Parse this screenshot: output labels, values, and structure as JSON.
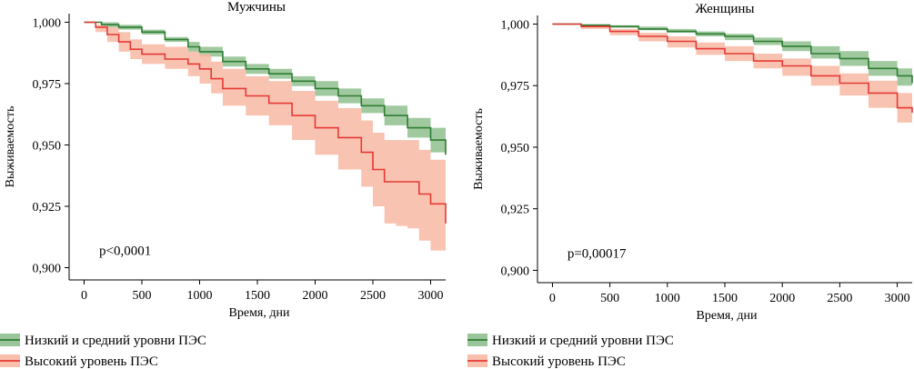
{
  "chart_data": [
    {
      "type": "line",
      "title": "Мужчины",
      "xlabel": "Время, дни",
      "ylabel": "Выживаемость",
      "xlim": [
        -130,
        3130
      ],
      "ylim": [
        0.895,
        1.0035
      ],
      "xticks": [
        0,
        500,
        1000,
        1500,
        2000,
        2500,
        3000
      ],
      "yticks": [
        0.9,
        0.925,
        0.95,
        0.975,
        1.0
      ],
      "xtick_labels": [
        "0",
        "500",
        "1000",
        "1500",
        "2000",
        "2500",
        "3000"
      ],
      "ytick_labels": [
        "0,900",
        "0,925",
        "0,950",
        "0,975",
        "1,000"
      ],
      "annotation": "p<0,0001",
      "annotation_pos": [
        130,
        0.907
      ],
      "grid": false,
      "series": [
        {
          "name": "Низкий и средний уровни ПЭС",
          "color": "#2e7d32",
          "band_color": "#8fbf8f",
          "x": [
            0,
            150,
            300,
            500,
            700,
            900,
            1000,
            1200,
            1400,
            1600,
            1800,
            2000,
            2200,
            2400,
            2600,
            2800,
            3000,
            3130
          ],
          "y": [
            1.0,
            0.999,
            0.998,
            0.996,
            0.993,
            0.99,
            0.988,
            0.984,
            0.981,
            0.979,
            0.976,
            0.973,
            0.97,
            0.966,
            0.962,
            0.957,
            0.952,
            0.946
          ],
          "lower": [
            1.0,
            0.998,
            0.997,
            0.995,
            0.992,
            0.988,
            0.986,
            0.982,
            0.979,
            0.977,
            0.974,
            0.97,
            0.967,
            0.963,
            0.958,
            0.953,
            0.947,
            0.94
          ],
          "upper": [
            1.0,
            1.0,
            0.999,
            0.997,
            0.994,
            0.992,
            0.99,
            0.986,
            0.983,
            0.981,
            0.978,
            0.976,
            0.973,
            0.969,
            0.966,
            0.961,
            0.957,
            0.952
          ]
        },
        {
          "name": "Высокий уровень ПЭС",
          "color": "#e53935",
          "band_color": "#f8b8a4",
          "x": [
            0,
            100,
            200,
            300,
            400,
            500,
            700,
            900,
            1000,
            1100,
            1200,
            1400,
            1600,
            1800,
            2000,
            2200,
            2400,
            2500,
            2600,
            2700,
            2800,
            2900,
            3000,
            3130
          ],
          "y": [
            1.0,
            0.998,
            0.995,
            0.992,
            0.989,
            0.987,
            0.985,
            0.983,
            0.981,
            0.977,
            0.973,
            0.97,
            0.967,
            0.962,
            0.957,
            0.953,
            0.947,
            0.94,
            0.935,
            0.935,
            0.935,
            0.93,
            0.926,
            0.918
          ],
          "lower": [
            1.0,
            0.996,
            0.992,
            0.988,
            0.985,
            0.983,
            0.981,
            0.978,
            0.975,
            0.971,
            0.966,
            0.962,
            0.958,
            0.952,
            0.946,
            0.94,
            0.933,
            0.925,
            0.918,
            0.917,
            0.916,
            0.911,
            0.907,
            0.903
          ],
          "upper": [
            1.0,
            0.999,
            0.998,
            0.996,
            0.993,
            0.991,
            0.99,
            0.988,
            0.987,
            0.984,
            0.981,
            0.978,
            0.976,
            0.972,
            0.968,
            0.965,
            0.96,
            0.955,
            0.952,
            0.952,
            0.952,
            0.948,
            0.944,
            0.935
          ]
        }
      ]
    },
    {
      "type": "line",
      "title": "Женщины",
      "xlabel": "Время, дни",
      "ylabel": "Выживаемость",
      "xlim": [
        -130,
        3130
      ],
      "ylim": [
        0.895,
        1.0035
      ],
      "xticks": [
        0,
        500,
        1000,
        1500,
        2000,
        2500,
        3000
      ],
      "yticks": [
        0.9,
        0.925,
        0.95,
        0.975,
        1.0
      ],
      "xtick_labels": [
        "0",
        "500",
        "1000",
        "1500",
        "2000",
        "2500",
        "3000"
      ],
      "ytick_labels": [
        "0,900",
        "0,925",
        "0,950",
        "0,975",
        "1,000"
      ],
      "annotation": "p=0,00017",
      "annotation_pos": [
        130,
        0.907
      ],
      "grid": false,
      "series": [
        {
          "name": "Низкий и средний уровни ПЭС",
          "color": "#2e7d32",
          "band_color": "#8fbf8f",
          "x": [
            0,
            250,
            500,
            750,
            1000,
            1250,
            1500,
            1750,
            2000,
            2250,
            2500,
            2750,
            3000,
            3130
          ],
          "y": [
            1.0,
            0.9995,
            0.999,
            0.998,
            0.997,
            0.996,
            0.995,
            0.993,
            0.991,
            0.988,
            0.986,
            0.982,
            0.979,
            0.976
          ],
          "lower": [
            1.0,
            0.999,
            0.9985,
            0.9975,
            0.9965,
            0.995,
            0.9935,
            0.9915,
            0.989,
            0.986,
            0.983,
            0.979,
            0.975,
            0.972
          ],
          "upper": [
            1.0,
            1.0,
            0.9995,
            0.999,
            0.998,
            0.997,
            0.996,
            0.9945,
            0.993,
            0.991,
            0.989,
            0.985,
            0.982,
            0.98
          ]
        },
        {
          "name": "Высокий уровень ПЭС",
          "color": "#e53935",
          "band_color": "#f8b8a4",
          "x": [
            0,
            250,
            500,
            750,
            1000,
            1250,
            1500,
            1750,
            2000,
            2250,
            2500,
            2750,
            3000,
            3130
          ],
          "y": [
            1.0,
            0.999,
            0.997,
            0.995,
            0.993,
            0.99,
            0.988,
            0.985,
            0.983,
            0.979,
            0.976,
            0.972,
            0.966,
            0.964
          ],
          "lower": [
            1.0,
            0.998,
            0.9955,
            0.993,
            0.9905,
            0.9875,
            0.985,
            0.982,
            0.979,
            0.975,
            0.971,
            0.966,
            0.96,
            0.958
          ],
          "upper": [
            1.0,
            0.9995,
            0.998,
            0.9965,
            0.995,
            0.9925,
            0.991,
            0.988,
            0.986,
            0.983,
            0.98,
            0.977,
            0.972,
            0.97
          ]
        }
      ]
    }
  ],
  "legend": {
    "position": "bottom-left",
    "items": [
      {
        "label": "Низкий и средний уровни ПЭС",
        "color": "#2e7d32",
        "band_color": "#8fbf8f"
      },
      {
        "label": "Высокий уровень ПЭС",
        "color": "#e53935",
        "band_color": "#f8b8a4"
      }
    ]
  }
}
